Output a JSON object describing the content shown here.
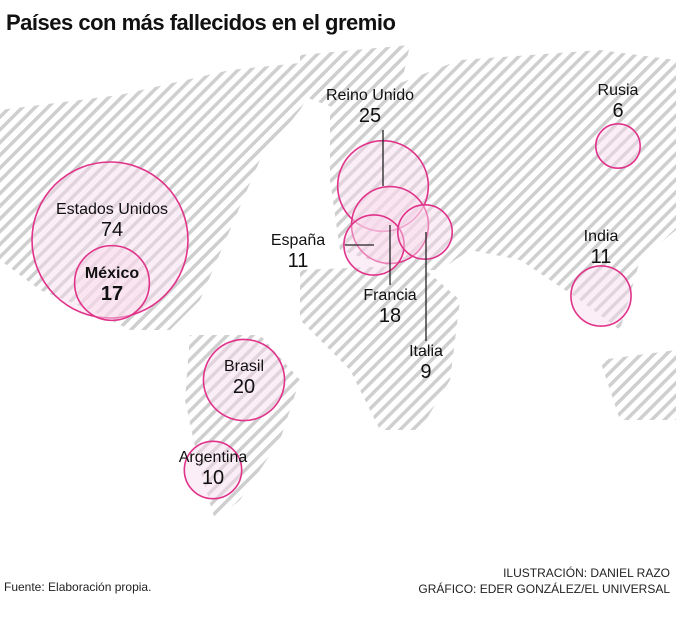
{
  "title": "Países con más fallecidos en el gremio",
  "chart_data": {
    "type": "bubble-map",
    "title": "Países con más fallecidos en el gremio",
    "encoding": "circle area proportional to value",
    "colors": {
      "stroke": "#e0338a",
      "fill": "#f9d9ea",
      "map_hatch": "#c8c8c8"
    },
    "points": [
      {
        "country": "Estados Unidos",
        "value": 74
      },
      {
        "country": "México",
        "value": 17,
        "highlight": true
      },
      {
        "country": "Reino Unido",
        "value": 25
      },
      {
        "country": "Francia",
        "value": 18
      },
      {
        "country": "España",
        "value": 11
      },
      {
        "country": "Italia",
        "value": 9
      },
      {
        "country": "Rusia",
        "value": 6
      },
      {
        "country": "India",
        "value": 11
      },
      {
        "country": "Brasil",
        "value": 20
      },
      {
        "country": "Argentina",
        "value": 10
      }
    ]
  },
  "footer": {
    "source": "Fuente: Elaboración propia.",
    "illustration": "ILUSTRACIÓN: DANIEL RAZO",
    "graphic": "GRÁFICO: EDER GONZÁLEZ/EL UNIVERSAL"
  }
}
